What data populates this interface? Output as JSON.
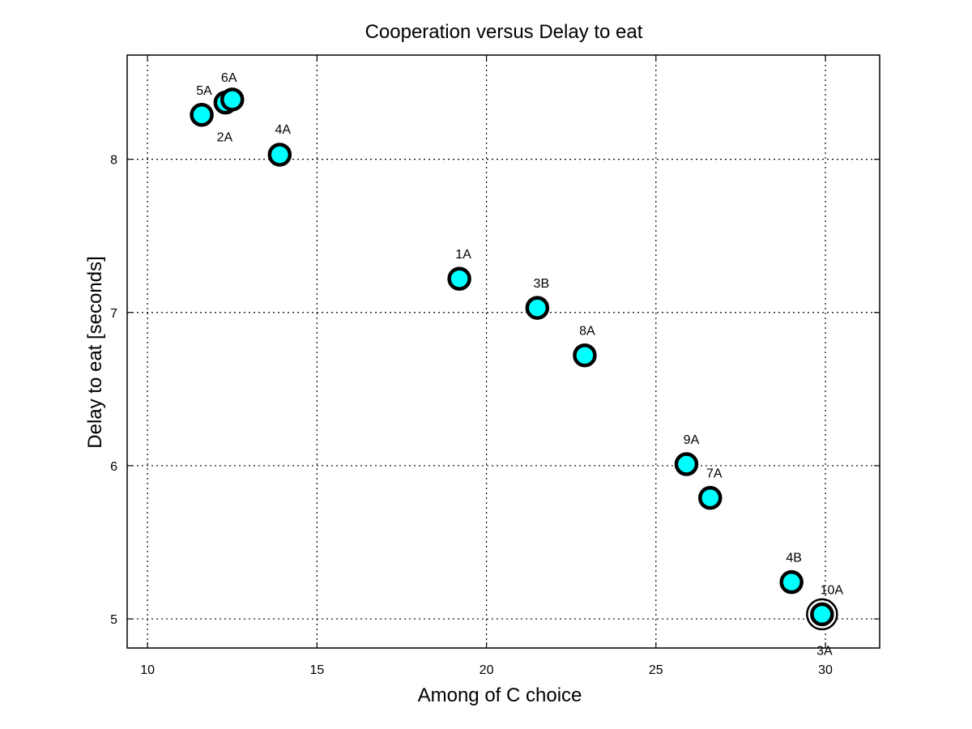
{
  "chart_data": {
    "type": "scatter",
    "title": "Cooperation versus Delay to eat",
    "xlabel": "Among of C choice",
    "ylabel": "Delay to eat [seconds]",
    "xlim": [
      9.4,
      31.6
    ],
    "ylim": [
      4.81,
      8.68
    ],
    "xticks": [
      10,
      15,
      20,
      25,
      30
    ],
    "yticks": [
      5,
      6,
      7,
      8
    ],
    "xtick_labels": [
      "10",
      "15",
      "20",
      "25",
      "30"
    ],
    "ytick_labels": [
      "5",
      "6",
      "7",
      "8"
    ],
    "grid": true,
    "marker_color": "#00ffff",
    "marker_edge_color": "#000000",
    "points": [
      {
        "label": "5A",
        "x": 11.6,
        "y": 8.29
      },
      {
        "label": "2A",
        "x": 12.3,
        "y": 8.37
      },
      {
        "label": "6A",
        "x": 12.5,
        "y": 8.39
      },
      {
        "label": "4A",
        "x": 13.9,
        "y": 8.03
      },
      {
        "label": "1A",
        "x": 19.2,
        "y": 7.22
      },
      {
        "label": "3B",
        "x": 21.5,
        "y": 7.03
      },
      {
        "label": "8A",
        "x": 22.9,
        "y": 6.72
      },
      {
        "label": "9A",
        "x": 25.9,
        "y": 6.01
      },
      {
        "label": "7A",
        "x": 26.6,
        "y": 5.79
      },
      {
        "label": "4B",
        "x": 29.0,
        "y": 5.24
      },
      {
        "label": "3A",
        "x": 29.9,
        "y": 5.03
      },
      {
        "label": "10A",
        "x": 29.9,
        "y": 5.03
      }
    ]
  }
}
